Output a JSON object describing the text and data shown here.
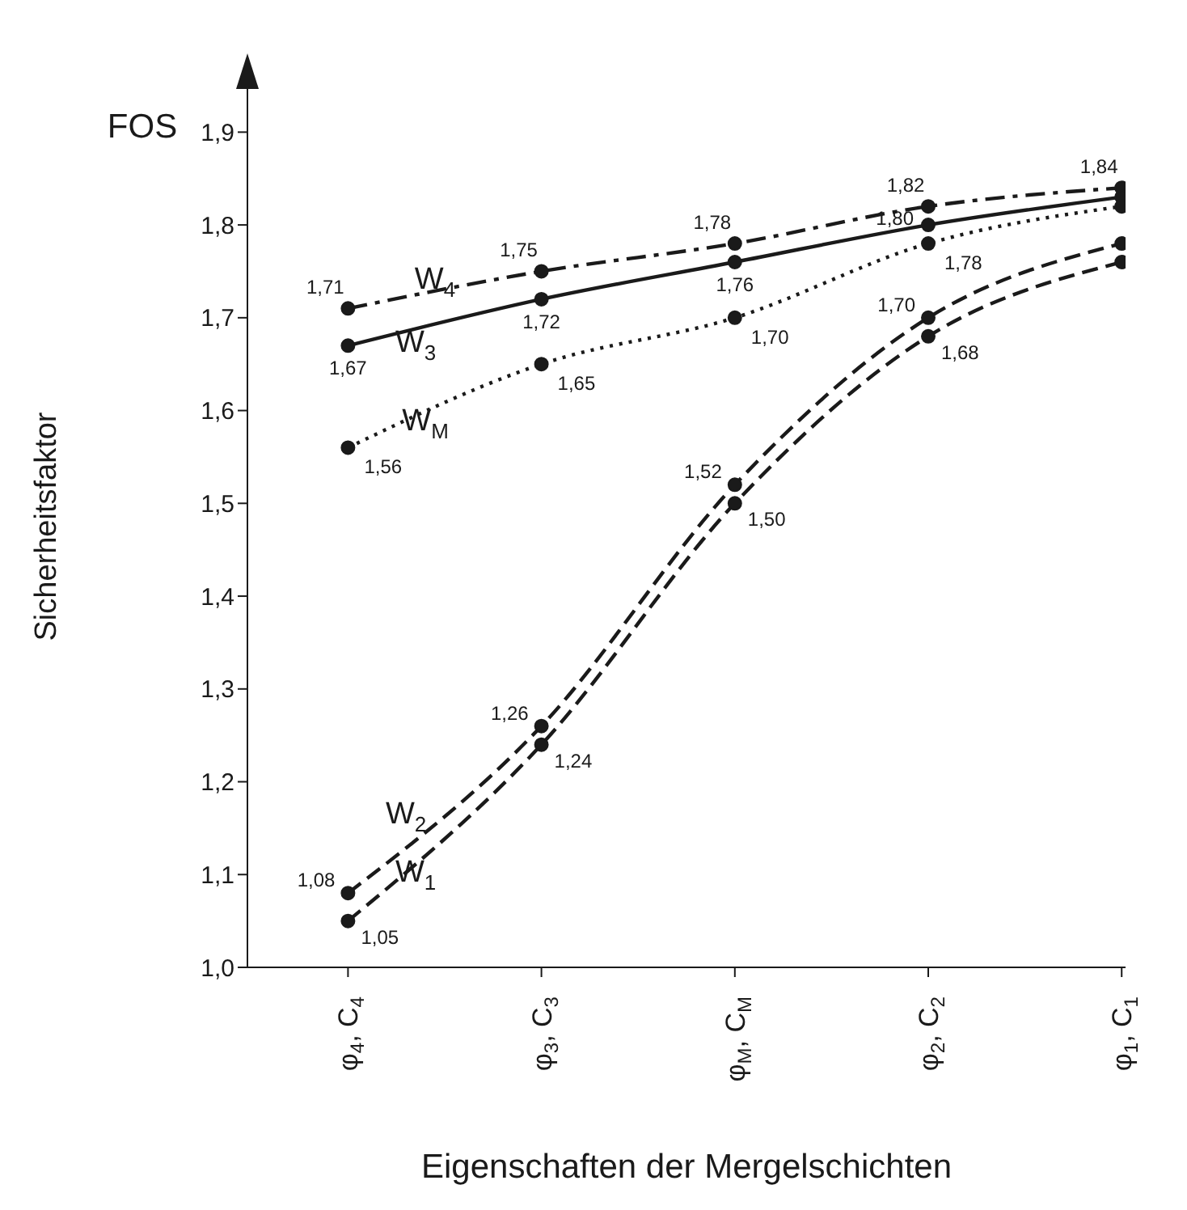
{
  "chart_data": {
    "type": "line",
    "xlabel": "Eigenschaften der Mergelschichten",
    "ylabel": "Sicherheitsfaktor",
    "annotations": [
      "FOS"
    ],
    "categories": [
      "φ$_{4}$, C$_{4}$",
      "φ$_{3}$, C$_{3}$",
      "φ$_{M}$, C$_{M}$",
      "φ$_{2}$, C$_{2}$",
      "φ$_{1}$, C$_{1}$"
    ],
    "series": [
      {
        "name": "W$_{4}$",
        "color": "#1a1a1a",
        "line_style": "dashdot",
        "values": [
          1.71,
          1.75,
          1.78,
          1.82,
          1.84
        ],
        "value_labels": [
          "1,71",
          "1,75",
          "1,78",
          "1,82",
          "1,84"
        ]
      },
      {
        "name": "W$_{3}$",
        "color": "#1a1a1a",
        "line_style": "solid",
        "values": [
          1.67,
          1.72,
          1.76,
          1.8,
          1.83
        ],
        "value_labels": [
          "1,67",
          "1,72",
          "1,76",
          "1,80",
          null
        ]
      },
      {
        "name": "W$_{M}$",
        "color": "#1a1a1a",
        "line_style": "dotted",
        "values": [
          1.56,
          1.65,
          1.7,
          1.78,
          1.82
        ],
        "value_labels": [
          "1,56",
          "1,65",
          "1,70",
          "1,78",
          null
        ]
      },
      {
        "name": "W$_{2}$",
        "color": "#1a1a1a",
        "line_style": "dashed",
        "values": [
          1.08,
          1.26,
          1.52,
          1.7,
          1.78
        ],
        "value_labels": [
          "1,08",
          "1,26",
          "1,52",
          "1,70",
          null
        ]
      },
      {
        "name": "W$_{1}$",
        "color": "#1a1a1a",
        "line_style": "dashed",
        "values": [
          1.05,
          1.24,
          1.5,
          1.68,
          1.76
        ],
        "value_labels": [
          "1,05",
          "1,24",
          "1,50",
          "1,68",
          null
        ]
      }
    ],
    "ylim": [
      1.0,
      1.95
    ],
    "yticks": [
      {
        "value": 1.0,
        "label": "1,0"
      },
      {
        "value": 1.1,
        "label": "1,1"
      },
      {
        "value": 1.2,
        "label": "1,2"
      },
      {
        "value": 1.3,
        "label": "1,3"
      },
      {
        "value": 1.4,
        "label": "1,4"
      },
      {
        "value": 1.5,
        "label": "1,5"
      },
      {
        "value": 1.6,
        "label": "1,6"
      },
      {
        "value": 1.7,
        "label": "1,7"
      },
      {
        "value": 1.8,
        "label": "1,8"
      },
      {
        "value": 1.9,
        "label": "1,9"
      }
    ],
    "grid": false,
    "legend": false,
    "marker": "circle"
  }
}
